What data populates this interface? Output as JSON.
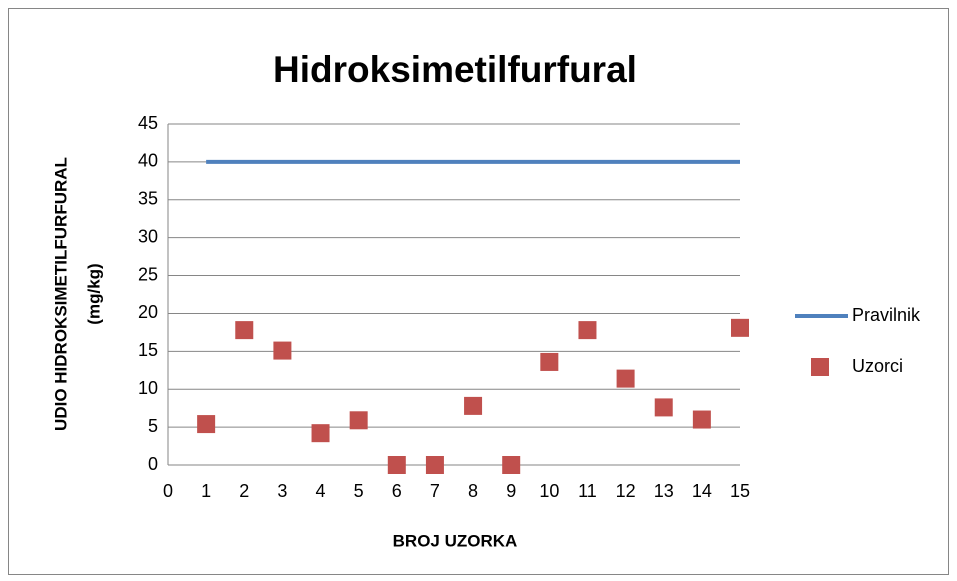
{
  "chart_data": {
    "type": "scatter",
    "title": "Hidroksimetilfurfural",
    "xlabel": "BROJ UZORKA",
    "ylabel": [
      "UDIO HIDROKSIMETILFURFURAL",
      "(mg/kg)"
    ],
    "x": [
      1,
      2,
      3,
      4,
      5,
      6,
      7,
      8,
      9,
      10,
      11,
      12,
      13,
      14,
      15
    ],
    "series": [
      {
        "name": "Pravilnik",
        "color": "#4f81bd",
        "mode": "line",
        "values": [
          40,
          40,
          40,
          40,
          40,
          40,
          40,
          40,
          40,
          40,
          40,
          40,
          40,
          40,
          40
        ]
      },
      {
        "name": "Uzorci",
        "color": "#c0504d",
        "mode": "markers",
        "values": [
          5.4,
          17.8,
          15.1,
          4.2,
          5.9,
          0,
          0,
          7.8,
          0,
          13.6,
          17.8,
          11.4,
          7.6,
          6.0,
          18.1
        ]
      }
    ],
    "xlim": [
      0,
      15
    ],
    "xticks": [
      0,
      1,
      2,
      3,
      4,
      5,
      6,
      7,
      8,
      9,
      10,
      11,
      12,
      13,
      14,
      15
    ],
    "ylim": [
      0,
      45
    ],
    "yticks": [
      0,
      5,
      10,
      15,
      20,
      25,
      30,
      35,
      40,
      45
    ],
    "grid": true,
    "legend": "right"
  }
}
